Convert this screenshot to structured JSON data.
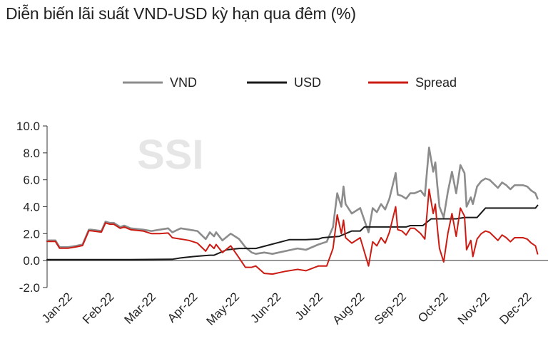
{
  "chart_data": {
    "type": "line",
    "title": "Diễn biến lãi suất VND-USD kỳ hạn qua đêm (%)",
    "xlabel": "",
    "ylabel": "",
    "ylim": [
      -2.0,
      10.0
    ],
    "xlim": [
      0,
      12
    ],
    "yticks": [
      "-2.0",
      "0.0",
      "2.0",
      "4.0",
      "6.0",
      "8.0",
      "10.0"
    ],
    "ytick_values": [
      -2,
      0,
      2,
      4,
      6,
      8,
      10
    ],
    "categories": [
      "Jan-22",
      "Feb-22",
      "Mar-22",
      "Apr-22",
      "May-22",
      "Jun-22",
      "Jul-22",
      "Aug-22",
      "Sep-22",
      "Oct-22",
      "Nov-22",
      "Dec-22"
    ],
    "grid": false,
    "legend_position": "top",
    "watermark": "SSI",
    "colors": {
      "VND": "#8c8c8c",
      "USD": "#1a1a1a",
      "Spread": "#cc1b12",
      "axis": "#333333"
    },
    "series": [
      {
        "name": "VND",
        "x": [
          0,
          0.2,
          0.3,
          0.5,
          0.7,
          0.85,
          1.0,
          1.05,
          1.3,
          1.4,
          1.5,
          1.6,
          1.75,
          1.85,
          2.0,
          2.3,
          2.5,
          2.7,
          2.9,
          3.0,
          3.2,
          3.4,
          3.6,
          3.8,
          3.9,
          4.0,
          4.05,
          4.2,
          4.4,
          4.6,
          4.75,
          4.9,
          5.0,
          5.2,
          5.4,
          5.7,
          6.0,
          6.2,
          6.5,
          6.7,
          6.85,
          6.95,
          7.05,
          7.1,
          7.15,
          7.3,
          7.5,
          7.7,
          7.8,
          7.9,
          8.0,
          8.1,
          8.2,
          8.35,
          8.4,
          8.5,
          8.6,
          8.7,
          8.8,
          8.95,
          9.05,
          9.15,
          9.25,
          9.3,
          9.35,
          9.4,
          9.5,
          9.6,
          9.7,
          9.8,
          9.9,
          10.0,
          10.05,
          10.15,
          10.2,
          10.3,
          10.4,
          10.5,
          10.6,
          10.8,
          10.9,
          11.0,
          11.1,
          11.2,
          11.4,
          11.5,
          11.6,
          11.7,
          11.75
        ],
        "values": [
          1.5,
          1.5,
          1.0,
          1.0,
          1.1,
          1.2,
          2.3,
          2.3,
          2.2,
          2.9,
          2.8,
          2.8,
          2.5,
          2.6,
          2.4,
          2.3,
          2.2,
          2.3,
          2.4,
          2.1,
          2.4,
          2.3,
          2.2,
          1.6,
          2.1,
          1.8,
          2.1,
          1.5,
          2.0,
          1.6,
          1.0,
          0.6,
          0.5,
          0.6,
          0.5,
          0.7,
          0.9,
          0.8,
          1.2,
          1.4,
          2.5,
          5.0,
          4.0,
          5.5,
          4.2,
          3.5,
          3.9,
          2.1,
          3.9,
          3.6,
          4.2,
          3.8,
          4.6,
          6.5,
          4.9,
          4.8,
          4.6,
          5.0,
          5.0,
          5.2,
          4.8,
          8.4,
          6.6,
          7.3,
          5.5,
          4.0,
          3.2,
          5.1,
          6.6,
          5.0,
          7.1,
          6.5,
          4.0,
          4.7,
          4.2,
          5.5,
          5.9,
          6.1,
          6.0,
          5.4,
          5.8,
          5.6,
          5.3,
          5.6,
          5.6,
          5.5,
          5.2,
          5.0,
          4.6
        ]
      },
      {
        "name": "USD",
        "x": [
          0,
          1.0,
          2.0,
          3.0,
          3.2,
          3.5,
          3.7,
          3.9,
          4.0,
          4.3,
          4.6,
          4.8,
          5.0,
          5.8,
          6.2,
          6.5,
          6.6,
          7.0,
          7.3,
          7.5,
          7.6,
          8.0,
          8.6,
          8.7,
          9.0,
          9.2,
          9.5,
          9.8,
          10.0,
          10.3,
          10.5,
          11.0,
          11.5,
          11.7,
          11.75
        ],
        "values": [
          0.08,
          0.08,
          0.08,
          0.1,
          0.2,
          0.3,
          0.35,
          0.4,
          0.4,
          0.8,
          0.9,
          0.9,
          0.9,
          1.55,
          1.55,
          1.6,
          1.7,
          1.8,
          2.2,
          2.2,
          2.5,
          2.5,
          2.5,
          2.6,
          2.6,
          3.1,
          3.1,
          3.1,
          3.2,
          3.2,
          3.9,
          3.9,
          3.9,
          3.9,
          4.1
        ]
      },
      {
        "name": "Spread",
        "x": [
          0,
          0.2,
          0.3,
          0.5,
          0.7,
          0.85,
          1.0,
          1.05,
          1.3,
          1.4,
          1.5,
          1.6,
          1.75,
          1.85,
          2.0,
          2.3,
          2.5,
          2.7,
          2.9,
          3.0,
          3.2,
          3.4,
          3.6,
          3.8,
          3.9,
          4.0,
          4.05,
          4.2,
          4.4,
          4.6,
          4.75,
          4.9,
          5.0,
          5.2,
          5.4,
          5.7,
          6.0,
          6.2,
          6.5,
          6.7,
          6.85,
          6.95,
          7.05,
          7.1,
          7.15,
          7.3,
          7.5,
          7.7,
          7.8,
          7.9,
          8.0,
          8.1,
          8.2,
          8.35,
          8.4,
          8.5,
          8.6,
          8.7,
          8.8,
          8.95,
          9.05,
          9.15,
          9.25,
          9.3,
          9.35,
          9.4,
          9.5,
          9.6,
          9.7,
          9.8,
          9.9,
          10.0,
          10.05,
          10.15,
          10.2,
          10.3,
          10.4,
          10.5,
          10.6,
          10.8,
          10.9,
          11.0,
          11.1,
          11.2,
          11.4,
          11.5,
          11.6,
          11.7,
          11.75
        ],
        "values": [
          1.42,
          1.42,
          0.92,
          0.92,
          1.02,
          1.12,
          2.22,
          2.22,
          2.12,
          2.8,
          2.7,
          2.7,
          2.4,
          2.5,
          2.3,
          2.2,
          2.0,
          2.0,
          2.05,
          1.7,
          1.6,
          1.5,
          1.3,
          0.7,
          1.2,
          0.9,
          1.2,
          0.6,
          1.1,
          0.2,
          -0.5,
          -0.5,
          -0.4,
          -0.95,
          -1.0,
          -0.8,
          -0.65,
          -0.75,
          -0.4,
          -0.4,
          0.9,
          3.4,
          2.0,
          3.0,
          1.7,
          1.3,
          1.7,
          -0.4,
          1.4,
          1.1,
          1.7,
          1.3,
          2.1,
          4.0,
          2.3,
          2.2,
          1.9,
          2.4,
          2.4,
          2.0,
          1.6,
          5.3,
          3.5,
          4.2,
          2.4,
          0.9,
          -0.1,
          2.0,
          3.5,
          1.8,
          3.9,
          3.3,
          0.8,
          1.5,
          0.3,
          1.6,
          2.0,
          2.2,
          2.1,
          1.5,
          1.9,
          1.7,
          1.4,
          1.7,
          1.7,
          1.6,
          1.3,
          1.1,
          0.5
        ]
      }
    ]
  }
}
